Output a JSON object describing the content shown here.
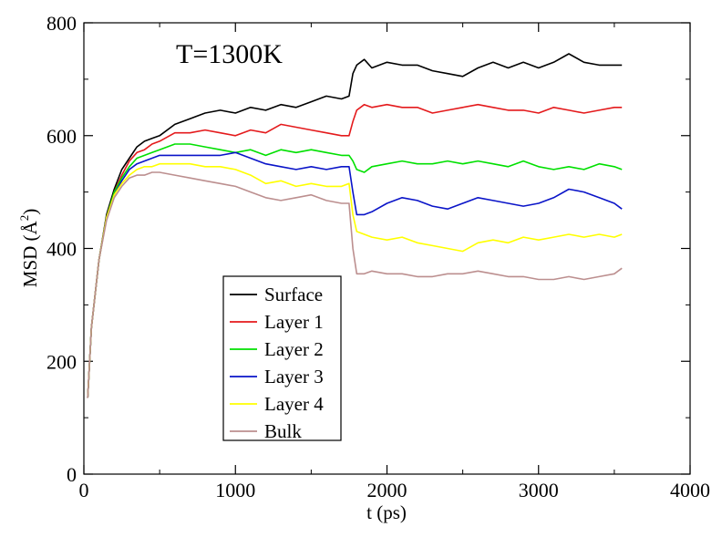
{
  "chart_data": {
    "type": "line",
    "annotation": "T=1300K",
    "xlabel": "t (ps)",
    "ylabel_prefix": "MSD (",
    "ylabel_unit": "Å",
    "ylabel_sup": "2",
    "ylabel_suffix": ")",
    "xlim": [
      0,
      4000
    ],
    "ylim": [
      0,
      800
    ],
    "xticks": [
      0,
      1000,
      2000,
      3000,
      4000
    ],
    "yticks": [
      0,
      200,
      400,
      600,
      800
    ],
    "grid": false,
    "legend_position": "lower-left-center",
    "x": [
      25,
      50,
      100,
      150,
      200,
      250,
      300,
      350,
      400,
      450,
      500,
      600,
      700,
      800,
      900,
      1000,
      1100,
      1200,
      1300,
      1400,
      1500,
      1600,
      1700,
      1750,
      1775,
      1800,
      1850,
      1900,
      2000,
      2100,
      2200,
      2300,
      2400,
      2500,
      2600,
      2700,
      2800,
      2900,
      3000,
      3100,
      3200,
      3300,
      3400,
      3500,
      3550
    ],
    "series": [
      {
        "name": "Surface",
        "color": "#000000",
        "values": [
          135,
          260,
          380,
          460,
          505,
          540,
          560,
          580,
          590,
          595,
          600,
          620,
          630,
          640,
          645,
          640,
          650,
          645,
          655,
          650,
          660,
          670,
          665,
          670,
          710,
          725,
          735,
          720,
          730,
          725,
          725,
          715,
          710,
          705,
          720,
          730,
          720,
          730,
          720,
          730,
          745,
          730,
          725,
          725,
          725
        ]
      },
      {
        "name": "Layer 1",
        "color": "#e41a1c",
        "values": [
          135,
          260,
          380,
          455,
          500,
          530,
          555,
          570,
          575,
          585,
          590,
          605,
          605,
          610,
          605,
          600,
          610,
          605,
          620,
          615,
          610,
          605,
          600,
          600,
          625,
          645,
          655,
          650,
          655,
          650,
          650,
          640,
          645,
          650,
          655,
          650,
          645,
          645,
          640,
          650,
          645,
          640,
          645,
          650,
          650
        ]
      },
      {
        "name": "Layer 2",
        "color": "#00e000",
        "values": [
          135,
          260,
          380,
          455,
          500,
          525,
          545,
          560,
          565,
          570,
          575,
          585,
          585,
          580,
          575,
          570,
          575,
          565,
          575,
          570,
          575,
          570,
          565,
          565,
          555,
          540,
          535,
          545,
          550,
          555,
          550,
          550,
          555,
          550,
          555,
          550,
          545,
          555,
          545,
          540,
          545,
          540,
          550,
          545,
          540
        ]
      },
      {
        "name": "Layer 3",
        "color": "#0a14c8",
        "values": [
          135,
          260,
          380,
          455,
          495,
          520,
          540,
          550,
          555,
          560,
          565,
          565,
          565,
          565,
          565,
          570,
          560,
          550,
          545,
          540,
          545,
          540,
          545,
          545,
          500,
          460,
          460,
          465,
          480,
          490,
          485,
          475,
          470,
          480,
          490,
          485,
          480,
          475,
          480,
          490,
          505,
          500,
          490,
          480,
          470
        ]
      },
      {
        "name": "Layer 4",
        "color": "#ffff00",
        "values": [
          135,
          260,
          380,
          455,
          495,
          515,
          530,
          540,
          545,
          545,
          550,
          550,
          550,
          545,
          545,
          540,
          530,
          515,
          520,
          510,
          515,
          510,
          510,
          515,
          460,
          430,
          425,
          420,
          415,
          420,
          410,
          405,
          400,
          395,
          410,
          415,
          410,
          420,
          415,
          420,
          425,
          420,
          425,
          420,
          425
        ]
      },
      {
        "name": "Bulk",
        "color": "#bc8f8f",
        "values": [
          135,
          260,
          380,
          450,
          490,
          510,
          525,
          530,
          530,
          535,
          535,
          530,
          525,
          520,
          515,
          510,
          500,
          490,
          485,
          490,
          495,
          485,
          480,
          480,
          400,
          355,
          355,
          360,
          355,
          355,
          350,
          350,
          355,
          355,
          360,
          355,
          350,
          350,
          345,
          345,
          350,
          345,
          350,
          355,
          365
        ]
      }
    ]
  }
}
